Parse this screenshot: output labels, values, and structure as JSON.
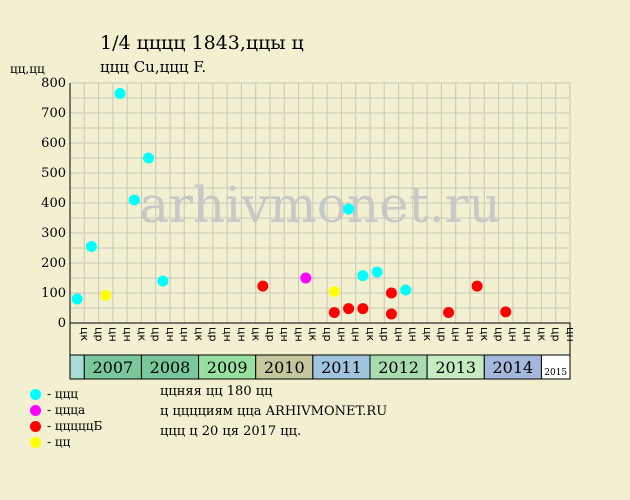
{
  "title": "1/4 цццц 1843,ццы ц",
  "subtitle": "ццц Cu,ццц F.",
  "watermark": "arhivmonet.ru",
  "colors": {
    "background": "#f2f0d0",
    "grid": "#c8c8b8",
    "cyan": "#00ffff",
    "magenta": "#ff00ff",
    "red": "#ff0000",
    "yellow": "#ffff00"
  },
  "legend": [
    {
      "label": "- ццц",
      "color": "#00ffff"
    },
    {
      "label": "- ццца",
      "color": "#ff00ff"
    },
    {
      "label": "- цццццБ",
      "color": "#ff0000"
    },
    {
      "label": "- цц",
      "color": "#ffff00"
    }
  ],
  "notes": [
    "ццняя цц 180 цц",
    "ц цццциям ццa ARHIVMONET.RU",
    "ццц ц 20 ця 2017 цц."
  ],
  "chart_data": {
    "type": "scatter",
    "title": "1/4 цццц 1843,ццы ц",
    "subtitle": "ццц Cu,ццц F.",
    "ylabel": "цц,цц",
    "ylim": [
      0,
      800
    ],
    "yticks": [
      0,
      100,
      200,
      300,
      400,
      500,
      600,
      700,
      800
    ],
    "grid": true,
    "x_slots": [
      "цк",
      "цр",
      "цн",
      "цн",
      "цк",
      "цр",
      "цн",
      "цн",
      "цк",
      "цр",
      "цн",
      "цн",
      "цк",
      "цр",
      "цн",
      "цн",
      "цк",
      "цр",
      "цн",
      "цн",
      "цк",
      "цр",
      "цн",
      "цн",
      "цк",
      "цр",
      "цн",
      "цн",
      "цк",
      "цр",
      "цн",
      "цн",
      "цк",
      "цр",
      "цн"
    ],
    "years": [
      {
        "label": "",
        "color": "#a8dcd4"
      },
      {
        "label": "2007",
        "color": "#78c89c"
      },
      {
        "label": "2008",
        "color": "#78c89c"
      },
      {
        "label": "2009",
        "color": "#98e0a0"
      },
      {
        "label": "2010",
        "color": "#c4c89c"
      },
      {
        "label": "2011",
        "color": "#a0c4dc"
      },
      {
        "label": "2012",
        "color": "#a8dcb0"
      },
      {
        "label": "2013",
        "color": "#c4ecc0"
      },
      {
        "label": "2014",
        "color": "#a4b8dc"
      },
      {
        "label": "2015",
        "color": "#ffffff"
      }
    ],
    "series": [
      {
        "name": "ццц",
        "color": "#00ffff",
        "points": [
          [
            0.5,
            80
          ],
          [
            1.5,
            255
          ],
          [
            3.5,
            765
          ],
          [
            4.5,
            410
          ],
          [
            5.5,
            550
          ],
          [
            6.5,
            140
          ],
          [
            19.5,
            380
          ],
          [
            20.5,
            158
          ],
          [
            21.5,
            170
          ],
          [
            23.5,
            110
          ]
        ]
      },
      {
        "name": "ццца",
        "color": "#ff00ff",
        "points": [
          [
            16.5,
            150
          ]
        ]
      },
      {
        "name": "цццццБ",
        "color": "#ff0000",
        "points": [
          [
            13.5,
            123
          ],
          [
            18.5,
            35
          ],
          [
            19.5,
            48
          ],
          [
            20.5,
            48
          ],
          [
            22.5,
            100
          ],
          [
            22.5,
            30
          ],
          [
            26.5,
            35
          ],
          [
            28.5,
            123
          ],
          [
            30.5,
            37
          ]
        ]
      },
      {
        "name": "цц",
        "color": "#ffff00",
        "points": [
          [
            2.5,
            92
          ],
          [
            18.5,
            105
          ]
        ]
      }
    ]
  }
}
